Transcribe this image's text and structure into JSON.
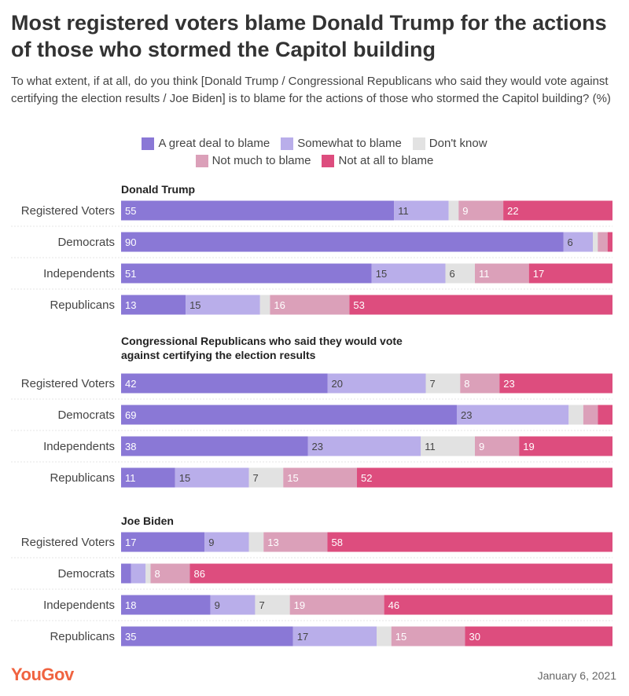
{
  "title": "Most registered voters blame Donald Trump for the actions of those who stormed the Capitol building",
  "subtitle": "To what extent, if at all, do you think [Donald Trump / Congressional Republicans who said they would vote against certifying the election results / Joe Biden] is to blame for the actions of those who stormed the Capitol building? (%)",
  "footer": {
    "logo": "YouGov",
    "date": "January 6, 2021"
  },
  "chart_data": {
    "type": "bar",
    "orientation": "horizontal",
    "stacked": true,
    "legend_position": "top",
    "xlim": [
      0,
      100
    ],
    "legend": [
      {
        "name": "A great deal to blame",
        "color": "#8a78d6"
      },
      {
        "name": "Somewhat to blame",
        "color": "#b9aeea"
      },
      {
        "name": "Don't know",
        "color": "#e2e2e2"
      },
      {
        "name": "Not much to blame",
        "color": "#dba0b9"
      },
      {
        "name": "Not at all to blame",
        "color": "#dd4d7e"
      }
    ],
    "label_colors": [
      "#ffffff",
      "#444444",
      "#444444",
      "#ffffff",
      "#ffffff"
    ],
    "groups": [
      {
        "title": "Donald Trump",
        "rows": [
          {
            "category": "Registered Voters",
            "values": [
              55,
              11,
              2,
              9,
              22
            ],
            "labels": [
              "55",
              "11",
              "",
              "9",
              "22"
            ]
          },
          {
            "category": "Democrats",
            "values": [
              90,
              6,
              1,
              2,
              1
            ],
            "labels": [
              "90",
              "6",
              "",
              "",
              ""
            ]
          },
          {
            "category": "Independents",
            "values": [
              51,
              15,
              6,
              11,
              17
            ],
            "labels": [
              "51",
              "15",
              "6",
              "11",
              "17"
            ]
          },
          {
            "category": "Republicans",
            "values": [
              13,
              15,
              2,
              16,
              53
            ],
            "labels": [
              "13",
              "15",
              "",
              "16",
              "53"
            ]
          }
        ]
      },
      {
        "title": "Congressional Republicans who said they would vote against certifying the election results",
        "rows": [
          {
            "category": "Registered Voters",
            "values": [
              42,
              20,
              7,
              8,
              23
            ],
            "labels": [
              "42",
              "20",
              "7",
              "8",
              "23"
            ]
          },
          {
            "category": "Democrats",
            "values": [
              69,
              23,
              3,
              3,
              3
            ],
            "labels": [
              "69",
              "23",
              "",
              "",
              ""
            ]
          },
          {
            "category": "Independents",
            "values": [
              38,
              23,
              11,
              9,
              19
            ],
            "labels": [
              "38",
              "23",
              "11",
              "9",
              "19"
            ]
          },
          {
            "category": "Republicans",
            "values": [
              11,
              15,
              7,
              15,
              52
            ],
            "labels": [
              "11",
              "15",
              "7",
              "15",
              "52"
            ]
          }
        ]
      },
      {
        "title": "Joe Biden",
        "rows": [
          {
            "category": "Registered Voters",
            "values": [
              17,
              9,
              3,
              13,
              58
            ],
            "labels": [
              "17",
              "9",
              "",
              "13",
              "58"
            ]
          },
          {
            "category": "Democrats",
            "values": [
              2,
              3,
              1,
              8,
              86
            ],
            "labels": [
              "",
              "",
              "",
              "8",
              "86"
            ]
          },
          {
            "category": "Independents",
            "values": [
              18,
              9,
              7,
              19,
              46
            ],
            "labels": [
              "18",
              "9",
              "7",
              "19",
              "46"
            ]
          },
          {
            "category": "Republicans",
            "values": [
              35,
              17,
              3,
              15,
              30
            ],
            "labels": [
              "35",
              "17",
              "",
              "15",
              "30"
            ]
          }
        ]
      }
    ]
  }
}
